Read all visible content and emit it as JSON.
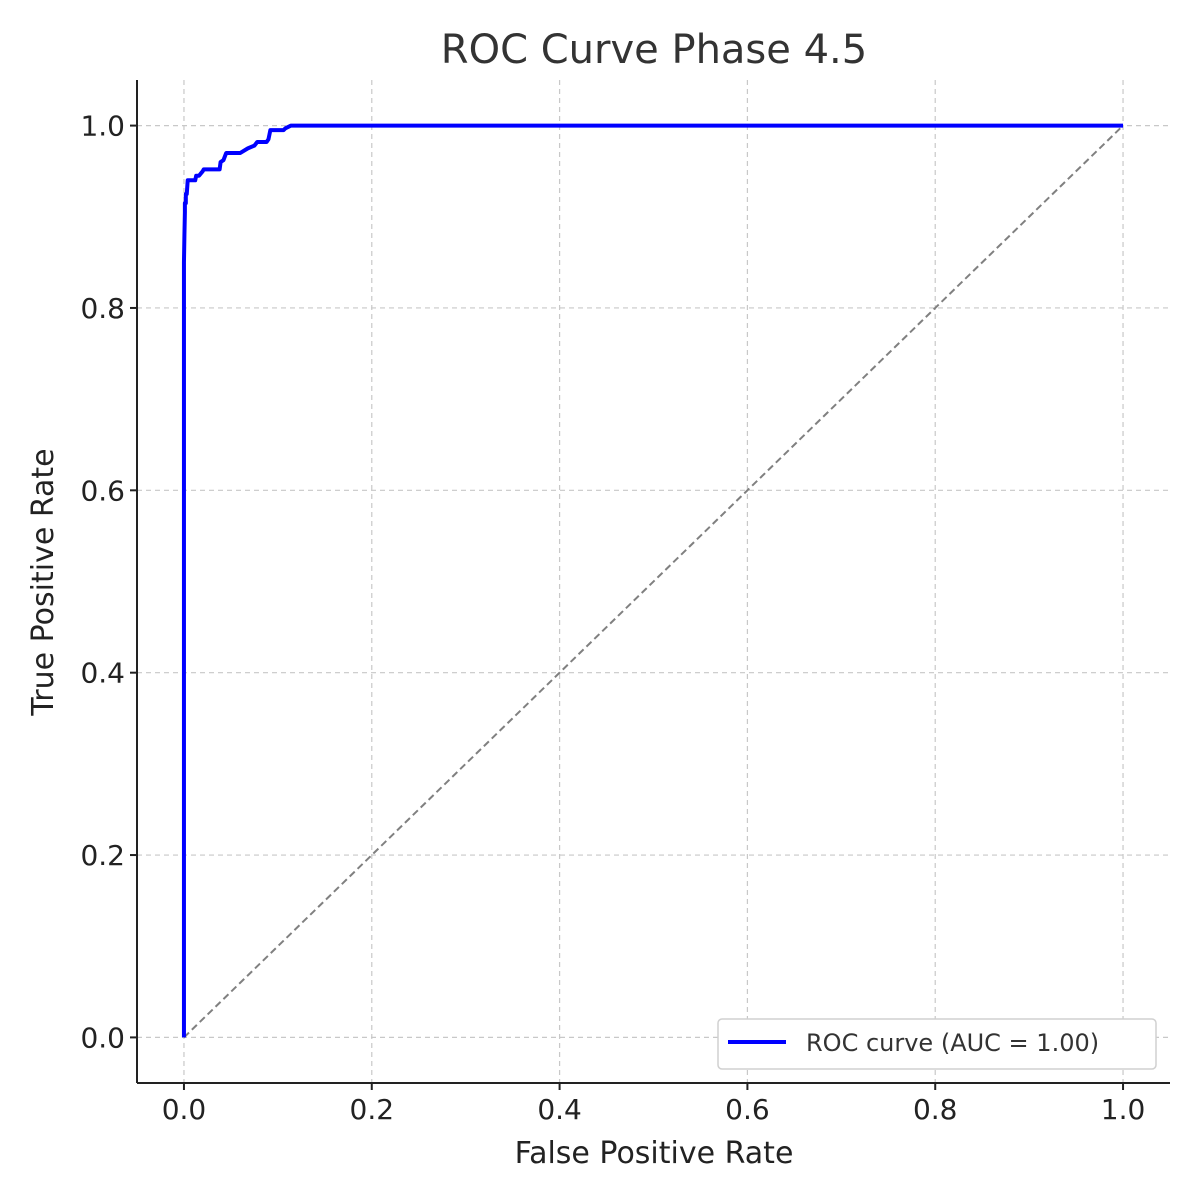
{
  "chart_data": {
    "type": "line",
    "title": "ROC Curve Phase 4.5",
    "xlabel": "False Positive Rate",
    "ylabel": "True Positive Rate",
    "xlim": [
      -0.05,
      1.05
    ],
    "ylim": [
      -0.05,
      1.05
    ],
    "xticks": [
      0.0,
      0.2,
      0.4,
      0.6,
      0.8,
      1.0
    ],
    "xtick_labels": [
      "0.0",
      "0.2",
      "0.4",
      "0.6",
      "0.8",
      "1.0"
    ],
    "yticks": [
      0.0,
      0.2,
      0.4,
      0.6,
      0.8,
      1.0
    ],
    "ytick_labels": [
      "0.0",
      "0.2",
      "0.4",
      "0.6",
      "0.8",
      "1.0"
    ],
    "grid": true,
    "legend_position": "lower-right",
    "series": [
      {
        "name": "ROC curve (AUC = 1.00)",
        "color": "#0000ff",
        "style": "solid",
        "x": [
          0.0,
          0.0,
          0.0,
          0.0,
          0.0005,
          0.001,
          0.001,
          0.002,
          0.002,
          0.003,
          0.004,
          0.004,
          0.005,
          0.012,
          0.013,
          0.016,
          0.02,
          0.021,
          0.025,
          0.03,
          0.038,
          0.039,
          0.042,
          0.045,
          0.058,
          0.06,
          0.068,
          0.075,
          0.078,
          0.088,
          0.09,
          0.092,
          0.104,
          0.106,
          0.108,
          0.114,
          1.0
        ],
        "y": [
          0.0,
          0.46,
          0.48,
          0.85,
          0.88,
          0.905,
          0.915,
          0.915,
          0.925,
          0.925,
          0.94,
          0.94,
          0.94,
          0.94,
          0.945,
          0.945,
          0.95,
          0.952,
          0.952,
          0.952,
          0.952,
          0.96,
          0.962,
          0.97,
          0.97,
          0.97,
          0.975,
          0.978,
          0.982,
          0.982,
          0.985,
          0.995,
          0.995,
          0.995,
          0.997,
          1.0,
          1.0
        ]
      },
      {
        "name": "",
        "color": "#808080",
        "style": "dashed",
        "x": [
          0.0,
          1.0
        ],
        "y": [
          0.0,
          1.0
        ]
      }
    ]
  }
}
